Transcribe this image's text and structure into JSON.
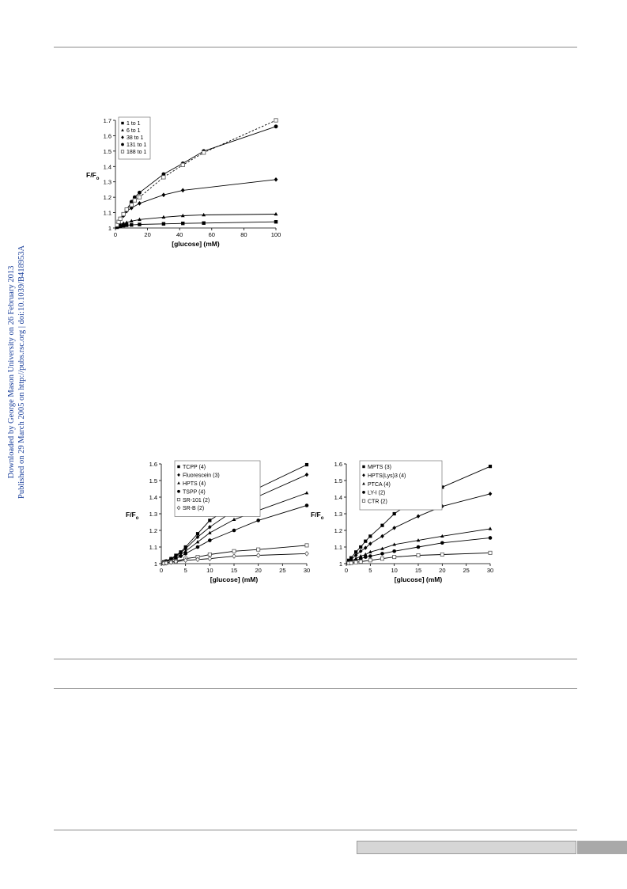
{
  "sidebar_note": {
    "line1": "Downloaded by George Mason University on 26 February 2013",
    "line2": "Published on 29 March 2005 on http://pubs.rsc.org | doi:10.1039/B418953A"
  },
  "chart_data": [
    {
      "type": "scatter",
      "title": "",
      "xlabel": "[glucose] (mM)",
      "ylabel": "F/F",
      "ylabel_sub": "o",
      "xlim": [
        0,
        100
      ],
      "ylim": [
        1,
        1.7
      ],
      "xticks": [
        0,
        20,
        40,
        60,
        80,
        100
      ],
      "yticks": [
        1,
        1.1,
        1.2,
        1.3,
        1.4,
        1.5,
        1.6,
        1.7
      ],
      "grid": false,
      "legend_position": "top-left",
      "series": [
        {
          "name": "1 to 1",
          "marker": "square",
          "line": "solid",
          "x": [
            0,
            1,
            2,
            3,
            5,
            7,
            10,
            15,
            30,
            42,
            55,
            100
          ],
          "y": [
            1.0,
            1.005,
            1.01,
            1.012,
            1.015,
            1.018,
            1.02,
            1.023,
            1.027,
            1.03,
            1.032,
            1.04
          ]
        },
        {
          "name": "6 to 1",
          "marker": "triangle",
          "line": "solid",
          "x": [
            0,
            1,
            2,
            3,
            5,
            7,
            10,
            15,
            30,
            42,
            55,
            100
          ],
          "y": [
            1.0,
            1.015,
            1.02,
            1.025,
            1.03,
            1.035,
            1.045,
            1.055,
            1.07,
            1.08,
            1.085,
            1.09
          ]
        },
        {
          "name": "38 to 1",
          "marker": "diamond",
          "line": "solid",
          "x": [
            0,
            1,
            2,
            3,
            5,
            7,
            10,
            15,
            30,
            42,
            100
          ],
          "y": [
            1.0,
            1.02,
            1.04,
            1.06,
            1.08,
            1.11,
            1.13,
            1.16,
            1.215,
            1.245,
            1.315
          ]
        },
        {
          "name": "131 to 1",
          "marker": "circle",
          "line": "solid",
          "x": [
            0,
            1,
            2,
            3,
            5,
            7,
            10,
            12,
            15,
            30,
            42,
            55,
            100
          ],
          "y": [
            1.0,
            1.02,
            1.04,
            1.06,
            1.09,
            1.12,
            1.17,
            1.2,
            1.23,
            1.35,
            1.42,
            1.5,
            1.66
          ]
        },
        {
          "name": "188 to 1",
          "marker": "open-square",
          "line": "dashed",
          "x": [
            0,
            1,
            2,
            3,
            5,
            7,
            10,
            12,
            15,
            30,
            42,
            55,
            100
          ],
          "y": [
            1.0,
            1.02,
            1.04,
            1.06,
            1.09,
            1.12,
            1.15,
            1.18,
            1.2,
            1.33,
            1.41,
            1.49,
            1.7
          ]
        }
      ]
    },
    {
      "type": "scatter",
      "title": "",
      "xlabel": "[glucose] (mM)",
      "ylabel": "F/F",
      "ylabel_sub": "o",
      "xlim": [
        0,
        30
      ],
      "ylim": [
        1,
        1.6
      ],
      "xticks": [
        0,
        5,
        10,
        15,
        20,
        25,
        30
      ],
      "yticks": [
        1,
        1.1,
        1.2,
        1.3,
        1.4,
        1.5,
        1.6
      ],
      "grid": false,
      "legend_position": "top-left",
      "series": [
        {
          "name": "TCPP (4)",
          "marker": "square",
          "line": "solid",
          "x": [
            0,
            0.5,
            1,
            2,
            3,
            4,
            5,
            7.5,
            10,
            15,
            20,
            30
          ],
          "y": [
            1.0,
            1.01,
            1.015,
            1.03,
            1.05,
            1.07,
            1.1,
            1.18,
            1.26,
            1.355,
            1.455,
            1.595
          ]
        },
        {
          "name": "Fluorescein (3)",
          "marker": "diamond",
          "line": "solid",
          "x": [
            0,
            0.5,
            1,
            2,
            3,
            4,
            5,
            7.5,
            10,
            15,
            20,
            30
          ],
          "y": [
            1.0,
            1.01,
            1.015,
            1.03,
            1.045,
            1.065,
            1.09,
            1.16,
            1.22,
            1.32,
            1.405,
            1.535
          ]
        },
        {
          "name": "HPTS (4)",
          "marker": "triangle",
          "line": "solid",
          "x": [
            0,
            0.5,
            1,
            2,
            3,
            4,
            5,
            7.5,
            10,
            15,
            20,
            30
          ],
          "y": [
            1.0,
            1.01,
            1.015,
            1.025,
            1.04,
            1.055,
            1.075,
            1.13,
            1.185,
            1.265,
            1.32,
            1.425
          ]
        },
        {
          "name": "TSPP (4)",
          "marker": "circle",
          "line": "solid",
          "x": [
            0,
            0.5,
            1,
            2,
            3,
            4,
            5,
            7.5,
            10,
            15,
            20,
            30
          ],
          "y": [
            1.0,
            1.005,
            1.01,
            1.02,
            1.03,
            1.045,
            1.06,
            1.1,
            1.14,
            1.2,
            1.26,
            1.35
          ]
        },
        {
          "name": "SR-101 (2)",
          "marker": "open-square",
          "line": "solid",
          "x": [
            0,
            0.5,
            1,
            2,
            3,
            5,
            7.5,
            10,
            15,
            20,
            30
          ],
          "y": [
            1.0,
            1.002,
            1.005,
            1.01,
            1.015,
            1.03,
            1.04,
            1.055,
            1.075,
            1.085,
            1.11
          ]
        },
        {
          "name": "SR-B (2)",
          "marker": "open-diamond",
          "line": "solid",
          "x": [
            0,
            0.5,
            1,
            2,
            3,
            5,
            7.5,
            10,
            15,
            20,
            30
          ],
          "y": [
            1.0,
            1.002,
            1.004,
            1.008,
            1.012,
            1.02,
            1.025,
            1.03,
            1.045,
            1.05,
            1.06
          ]
        }
      ]
    },
    {
      "type": "scatter",
      "title": "",
      "xlabel": "[glucose] (mM)",
      "ylabel": "F/F",
      "ylabel_sub": "o",
      "xlim": [
        0,
        30
      ],
      "ylim": [
        1,
        1.6
      ],
      "xticks": [
        0,
        5,
        10,
        15,
        20,
        25,
        30
      ],
      "yticks": [
        1,
        1.1,
        1.2,
        1.3,
        1.4,
        1.5,
        1.6
      ],
      "grid": false,
      "legend_position": "top-left",
      "series": [
        {
          "name": "MPTS (3)",
          "marker": "square",
          "line": "solid",
          "x": [
            0,
            0.5,
            1,
            2,
            3,
            4,
            5,
            7.5,
            10,
            15,
            20,
            30
          ],
          "y": [
            1.0,
            1.02,
            1.035,
            1.07,
            1.1,
            1.135,
            1.165,
            1.23,
            1.3,
            1.4,
            1.46,
            1.585
          ]
        },
        {
          "name": "HPTS(Lys)3 (4)",
          "marker": "diamond",
          "line": "solid",
          "x": [
            0,
            0.5,
            1,
            2,
            3,
            4,
            5,
            7.5,
            10,
            15,
            20,
            30
          ],
          "y": [
            1.0,
            1.015,
            1.025,
            1.05,
            1.075,
            1.095,
            1.12,
            1.165,
            1.215,
            1.285,
            1.345,
            1.42
          ]
        },
        {
          "name": "PTCA (4)",
          "marker": "triangle",
          "line": "solid",
          "x": [
            0,
            0.5,
            1,
            2,
            3,
            4,
            5,
            7.5,
            10,
            15,
            20,
            30
          ],
          "y": [
            1.0,
            1.008,
            1.015,
            1.03,
            1.045,
            1.055,
            1.07,
            1.09,
            1.115,
            1.14,
            1.165,
            1.21
          ]
        },
        {
          "name": "LY-I (2)",
          "marker": "circle",
          "line": "solid",
          "x": [
            0,
            0.5,
            1,
            2,
            3,
            4,
            5,
            7.5,
            10,
            15,
            20,
            30
          ],
          "y": [
            1.0,
            1.005,
            1.01,
            1.02,
            1.03,
            1.04,
            1.045,
            1.06,
            1.075,
            1.1,
            1.125,
            1.155
          ]
        },
        {
          "name": "CTR (2)",
          "marker": "open-square",
          "line": "solid",
          "x": [
            0,
            0.5,
            1,
            2,
            3,
            5,
            7.5,
            10,
            15,
            20,
            30
          ],
          "y": [
            1.0,
            1.002,
            1.004,
            1.008,
            1.012,
            1.02,
            1.03,
            1.04,
            1.05,
            1.055,
            1.065
          ]
        }
      ]
    }
  ]
}
